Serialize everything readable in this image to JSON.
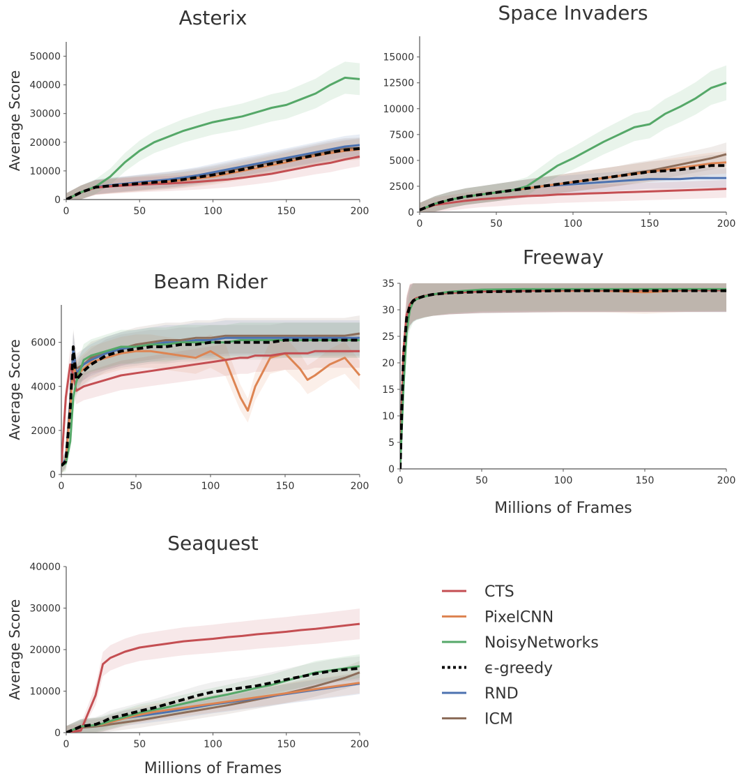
{
  "legend": {
    "entries": [
      {
        "name": "CTS",
        "color": "#c44e52",
        "dash": "solid"
      },
      {
        "name": "PixelCNN",
        "color": "#dd8452",
        "dash": "solid"
      },
      {
        "name": "NoisyNetworks",
        "color": "#55a868",
        "dash": "solid"
      },
      {
        "name": "ϵ-greedy",
        "color": "#000000",
        "dash": "dotted"
      },
      {
        "name": "RND",
        "color": "#4c72b0",
        "dash": "solid"
      },
      {
        "name": "ICM",
        "color": "#8c6d5a",
        "dash": "solid"
      }
    ]
  },
  "chart_data": [
    {
      "type": "line",
      "title": "Asterix",
      "xlabel": "",
      "ylabel": "Average Score",
      "xlim": [
        0,
        200
      ],
      "ylim": [
        0,
        55000
      ],
      "xticks": [
        0,
        50,
        100,
        150,
        200
      ],
      "yticks": [
        0,
        10000,
        20000,
        30000,
        40000,
        50000
      ],
      "x": [
        0,
        10,
        20,
        30,
        40,
        50,
        60,
        70,
        80,
        90,
        100,
        110,
        120,
        130,
        140,
        150,
        160,
        170,
        180,
        190,
        200
      ],
      "series": [
        {
          "name": "CTS",
          "values": [
            0,
            2500,
            4200,
            4600,
            4900,
            5200,
            5400,
            5600,
            5900,
            6200,
            6600,
            7000,
            7600,
            8300,
            9000,
            10000,
            11000,
            12000,
            12800,
            14000,
            15000
          ]
        },
        {
          "name": "PixelCNN",
          "values": [
            0,
            2500,
            4200,
            4700,
            5100,
            5500,
            5900,
            6300,
            6800,
            7400,
            8000,
            9000,
            10000,
            11000,
            12000,
            13000,
            14200,
            15300,
            16200,
            17000,
            17500
          ]
        },
        {
          "name": "NoisyNetworks",
          "values": [
            0,
            2500,
            4500,
            8000,
            13000,
            17000,
            20000,
            22000,
            24000,
            25500,
            27000,
            28000,
            29000,
            30500,
            32000,
            33000,
            35000,
            37000,
            40000,
            42500,
            42000
          ]
        },
        {
          "name": "ϵ-greedy",
          "values": [
            0,
            2500,
            4300,
            4800,
            5200,
            5600,
            6000,
            6400,
            7000,
            7800,
            8600,
            9500,
            10500,
            11500,
            12500,
            13500,
            14500,
            15500,
            16500,
            17300,
            17800
          ]
        },
        {
          "name": "RND",
          "values": [
            0,
            2500,
            4400,
            5000,
            5500,
            6000,
            6500,
            7000,
            7700,
            8500,
            9500,
            10500,
            11500,
            12500,
            13500,
            14500,
            15500,
            16500,
            17500,
            18500,
            19000
          ]
        },
        {
          "name": "ICM",
          "values": [
            0,
            2500,
            4300,
            4900,
            5400,
            5900,
            6400,
            6900,
            7500,
            8200,
            9000,
            10000,
            11000,
            12000,
            13000,
            14000,
            15000,
            16000,
            17000,
            17800,
            18000
          ]
        }
      ]
    },
    {
      "type": "line",
      "title": "Space Invaders",
      "xlabel": "",
      "ylabel": "",
      "xlim": [
        0,
        200
      ],
      "ylim": [
        0,
        17000
      ],
      "xticks": [
        0,
        50,
        100,
        150,
        200
      ],
      "yticks": [
        0,
        2500,
        5000,
        7500,
        10000,
        12500,
        15000
      ],
      "x": [
        0,
        10,
        20,
        30,
        40,
        50,
        60,
        70,
        80,
        90,
        100,
        110,
        120,
        130,
        140,
        150,
        160,
        170,
        180,
        190,
        200
      ],
      "series": [
        {
          "name": "CTS",
          "values": [
            200,
            700,
            900,
            1100,
            1250,
            1350,
            1450,
            1550,
            1600,
            1700,
            1750,
            1800,
            1850,
            1900,
            1950,
            2000,
            2050,
            2100,
            2150,
            2200,
            2250
          ]
        },
        {
          "name": "PixelCNN",
          "values": [
            200,
            800,
            1200,
            1500,
            1700,
            1900,
            2100,
            2300,
            2500,
            2700,
            2900,
            3100,
            3300,
            3500,
            3700,
            3900,
            4100,
            4300,
            4500,
            4700,
            4800
          ]
        },
        {
          "name": "NoisyNetworks",
          "values": [
            200,
            800,
            1200,
            1500,
            1700,
            1900,
            2100,
            2500,
            3500,
            4500,
            5200,
            6000,
            6800,
            7500,
            8200,
            8500,
            9500,
            10200,
            11000,
            12000,
            12500
          ]
        },
        {
          "name": "ϵ-greedy",
          "values": [
            200,
            800,
            1200,
            1500,
            1700,
            1900,
            2100,
            2300,
            2500,
            2700,
            2900,
            3100,
            3300,
            3500,
            3700,
            3900,
            4000,
            4100,
            4300,
            4500,
            4500
          ]
        },
        {
          "name": "RND",
          "values": [
            200,
            800,
            1200,
            1500,
            1700,
            1900,
            2100,
            2300,
            2500,
            2600,
            2700,
            2800,
            2900,
            3000,
            3100,
            3200,
            3200,
            3200,
            3300,
            3300,
            3300
          ]
        },
        {
          "name": "ICM",
          "values": [
            200,
            800,
            1200,
            1500,
            1700,
            1900,
            2100,
            2300,
            2500,
            2700,
            2900,
            3100,
            3300,
            3500,
            3800,
            4000,
            4300,
            4600,
            4900,
            5200,
            5600
          ]
        }
      ]
    },
    {
      "type": "line",
      "title": "Beam Rider",
      "xlabel": "",
      "ylabel": "Average Score",
      "xlim": [
        0,
        200
      ],
      "ylim": [
        0,
        7700
      ],
      "xticks": [
        0,
        50,
        100,
        150,
        200
      ],
      "yticks": [
        0,
        2000,
        4000,
        6000
      ],
      "x": [
        0,
        3,
        6,
        8,
        10,
        15,
        20,
        30,
        40,
        50,
        60,
        70,
        80,
        90,
        100,
        110,
        120,
        125,
        130,
        140,
        150,
        160,
        165,
        170,
        180,
        190,
        200
      ],
      "series": [
        {
          "name": "CTS",
          "values": [
            400,
            3500,
            5000,
            4500,
            3800,
            4000,
            4100,
            4300,
            4500,
            4600,
            4700,
            4800,
            4900,
            5000,
            5100,
            5200,
            5300,
            5300,
            5400,
            5400,
            5500,
            5500,
            5500,
            5600,
            5600,
            5600,
            5600
          ]
        },
        {
          "name": "PixelCNN",
          "values": [
            400,
            600,
            3000,
            5000,
            4500,
            4800,
            5100,
            5300,
            5500,
            5600,
            5600,
            5500,
            5400,
            5300,
            5600,
            5200,
            3500,
            2900,
            4000,
            5300,
            5500,
            4800,
            4300,
            4500,
            5000,
            5300,
            4500
          ]
        },
        {
          "name": "NoisyNetworks",
          "values": [
            400,
            500,
            1500,
            3500,
            4200,
            5200,
            5400,
            5600,
            5800,
            5800,
            5900,
            5900,
            6000,
            6000,
            6000,
            6000,
            6100,
            6100,
            6100,
            6100,
            6100,
            6100,
            6100,
            6100,
            6100,
            6100,
            6100
          ]
        },
        {
          "name": "ϵ-greedy",
          "values": [
            400,
            600,
            3000,
            5800,
            4300,
            4700,
            5000,
            5400,
            5600,
            5700,
            5800,
            5800,
            5900,
            5900,
            6000,
            6000,
            6000,
            6000,
            6000,
            6000,
            6100,
            6100,
            6100,
            6100,
            6100,
            6100,
            6100
          ]
        },
        {
          "name": "RND",
          "values": [
            400,
            700,
            3200,
            5700,
            4600,
            5000,
            5200,
            5500,
            5700,
            5800,
            5900,
            6000,
            6000,
            6100,
            6100,
            6200,
            6200,
            6200,
            6200,
            6200,
            6200,
            6200,
            6200,
            6200,
            6200,
            6200,
            6200
          ]
        },
        {
          "name": "ICM",
          "values": [
            400,
            700,
            3400,
            5800,
            4800,
            5000,
            5300,
            5500,
            5700,
            5900,
            6000,
            6100,
            6100,
            6200,
            6200,
            6300,
            6300,
            6300,
            6300,
            6300,
            6300,
            6300,
            6300,
            6300,
            6300,
            6300,
            6400
          ]
        }
      ]
    },
    {
      "type": "line",
      "title": "Freeway",
      "xlabel": "Millions of Frames",
      "ylabel": "",
      "xlim": [
        0,
        200
      ],
      "ylim": [
        0,
        35
      ],
      "xticks": [
        0,
        50,
        100,
        150,
        200
      ],
      "yticks": [
        0,
        5,
        10,
        15,
        20,
        25,
        30,
        35
      ],
      "x": [
        0,
        2,
        4,
        6,
        8,
        10,
        15,
        20,
        30,
        50,
        75,
        100,
        125,
        150,
        175,
        200
      ],
      "series": [
        {
          "name": "CTS",
          "values": [
            0,
            22,
            29,
            31,
            31.8,
            32.2,
            32.6,
            32.9,
            33.2,
            33.5,
            33.6,
            33.7,
            33.7,
            33.7,
            33.7,
            33.7
          ]
        },
        {
          "name": "PixelCNN",
          "values": [
            0,
            22,
            29,
            31,
            31.8,
            32.2,
            32.6,
            32.9,
            33.2,
            33.5,
            33.6,
            33.6,
            33.6,
            33.3,
            33.7,
            33.8
          ]
        },
        {
          "name": "NoisyNetworks",
          "values": [
            0,
            15,
            26,
            30,
            31.5,
            32.0,
            32.5,
            32.9,
            33.4,
            33.8,
            33.9,
            33.9,
            33.9,
            33.9,
            33.9,
            33.9
          ]
        },
        {
          "name": "ϵ-greedy",
          "values": [
            0,
            21,
            28.5,
            30.8,
            31.7,
            32.1,
            32.6,
            32.9,
            33.2,
            33.4,
            33.5,
            33.6,
            33.6,
            33.6,
            33.6,
            33.6
          ]
        },
        {
          "name": "RND",
          "values": [
            0,
            21,
            28.5,
            30.8,
            31.7,
            32.1,
            32.6,
            32.9,
            33.2,
            33.5,
            33.6,
            33.7,
            33.7,
            33.7,
            33.7,
            33.7
          ]
        },
        {
          "name": "ICM",
          "values": [
            0,
            21,
            28.5,
            30.8,
            31.7,
            32.1,
            32.6,
            32.9,
            33.2,
            33.5,
            33.6,
            33.7,
            33.7,
            33.7,
            33.7,
            33.7
          ]
        }
      ]
    },
    {
      "type": "line",
      "title": "Seaquest",
      "xlabel": "Millions of Frames",
      "ylabel": "Average Score",
      "xlim": [
        0,
        200
      ],
      "ylim": [
        0,
        40000
      ],
      "xticks": [
        0,
        50,
        100,
        150,
        200
      ],
      "yticks": [
        0,
        10000,
        20000,
        30000,
        40000
      ],
      "x": [
        0,
        10,
        20,
        25,
        30,
        40,
        50,
        60,
        70,
        80,
        90,
        100,
        110,
        120,
        130,
        140,
        150,
        160,
        170,
        180,
        190,
        200
      ],
      "series": [
        {
          "name": "CTS",
          "values": [
            0,
            500,
            9000,
            16500,
            18000,
            19500,
            20500,
            21000,
            21500,
            22000,
            22300,
            22600,
            23000,
            23300,
            23700,
            24000,
            24300,
            24700,
            25000,
            25400,
            25800,
            26200
          ]
        },
        {
          "name": "PixelCNN",
          "values": [
            0,
            1500,
            1800,
            2000,
            2500,
            3500,
            4300,
            5000,
            5500,
            6000,
            6500,
            7000,
            7500,
            8000,
            8500,
            9000,
            9500,
            10000,
            10500,
            11000,
            11500,
            12000
          ]
        },
        {
          "name": "NoisyNetworks",
          "values": [
            0,
            1500,
            1800,
            2200,
            2800,
            3800,
            4800,
            5500,
            6200,
            7000,
            7800,
            8500,
            9200,
            10000,
            10800,
            11500,
            12500,
            13500,
            14500,
            15000,
            15500,
            16000
          ]
        },
        {
          "name": "ϵ-greedy",
          "values": [
            0,
            1500,
            2000,
            2600,
            3500,
            4300,
            5200,
            6000,
            7000,
            8000,
            9000,
            9800,
            10300,
            10800,
            11300,
            12000,
            12800,
            13500,
            14200,
            14800,
            15200,
            15500
          ]
        },
        {
          "name": "RND",
          "values": [
            0,
            1500,
            1800,
            2000,
            2500,
            3500,
            4000,
            4500,
            5000,
            5600,
            6200,
            6800,
            7300,
            7800,
            8300,
            8800,
            9300,
            9800,
            10300,
            10800,
            11300,
            11800
          ]
        },
        {
          "name": "ICM",
          "values": [
            0,
            1200,
            1500,
            1700,
            2000,
            2500,
            3000,
            3600,
            4200,
            4800,
            5400,
            6000,
            6600,
            7300,
            8000,
            8700,
            9500,
            10300,
            11200,
            12200,
            13200,
            14500
          ]
        }
      ]
    }
  ]
}
